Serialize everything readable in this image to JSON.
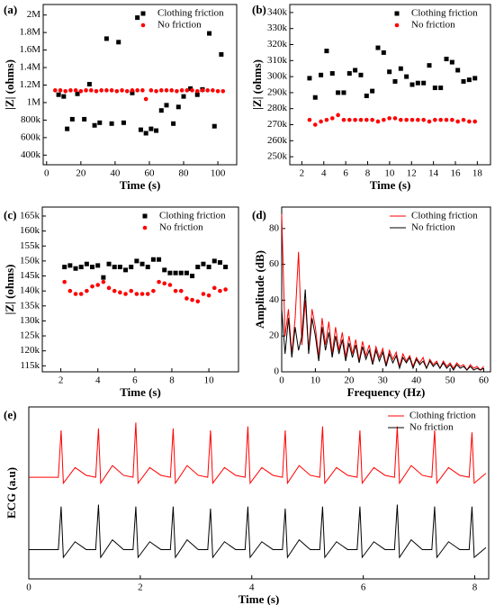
{
  "chart_data": [
    {
      "type": "scatter",
      "panel_label": "(a)",
      "x_label": "Time (s)",
      "y_label": "|Z| (ohms)",
      "legend": "upper right",
      "xlim": [
        -2,
        111
      ],
      "xticks": [
        0,
        20,
        40,
        60,
        80,
        100
      ],
      "ylim": [
        290000,
        2120000
      ],
      "yticks": [
        {
          "value": 400000,
          "label": "400k"
        },
        {
          "value": 600000,
          "label": "600k"
        },
        {
          "value": 800000,
          "label": "800k"
        },
        {
          "value": 1000000,
          "label": "1M"
        },
        {
          "value": 1200000,
          "label": "1.2M"
        },
        {
          "value": 1400000,
          "label": "1.4M"
        },
        {
          "value": 1600000,
          "label": "1.6M"
        },
        {
          "value": 1800000,
          "label": "1.8M"
        },
        {
          "value": 2000000,
          "label": "2M"
        }
      ],
      "series": [
        {
          "name": "Clothing friction",
          "color": "#000000",
          "marker": "square",
          "x": [
            7,
            10,
            12,
            15,
            18,
            22,
            25,
            28,
            31,
            35,
            38,
            42,
            45,
            50,
            53,
            55,
            58,
            61,
            64,
            67,
            70,
            74,
            77,
            80,
            84,
            88,
            91,
            95,
            98,
            102
          ],
          "values": [
            1090000,
            1070000,
            700000,
            810000,
            1100000,
            810000,
            1210000,
            740000,
            770000,
            1730000,
            760000,
            1690000,
            770000,
            1110000,
            1970000,
            690000,
            650000,
            700000,
            680000,
            910000,
            970000,
            760000,
            950000,
            1070000,
            1160000,
            1090000,
            1150000,
            1790000,
            730000,
            1550000
          ]
        },
        {
          "name": "No friction",
          "color": "#ff0000",
          "marker": "circle",
          "x": [
            5,
            8,
            11,
            14,
            17,
            20,
            23,
            26,
            29,
            32,
            35,
            38,
            41,
            44,
            47,
            50,
            53,
            56,
            58,
            61,
            64,
            67,
            70,
            73,
            76,
            79,
            82,
            85,
            88,
            91,
            94,
            97,
            100,
            103
          ],
          "values": [
            1140000,
            1140000,
            1130000,
            1140000,
            1140000,
            1130000,
            1140000,
            1140000,
            1130000,
            1140000,
            1140000,
            1140000,
            1130000,
            1140000,
            1130000,
            1140000,
            1140000,
            1140000,
            1040000,
            1140000,
            1130000,
            1140000,
            1140000,
            1140000,
            1130000,
            1140000,
            1140000,
            1140000,
            1130000,
            1140000,
            1140000,
            1140000,
            1130000,
            1130000
          ]
        }
      ]
    },
    {
      "type": "scatter",
      "panel_label": "(b)",
      "x_label": "Time (s)",
      "y_label": "|Z| (ohms)",
      "legend": "upper right",
      "xlim": [
        0.9,
        19.2
      ],
      "xticks": [
        2,
        4,
        6,
        8,
        10,
        12,
        14,
        16,
        18
      ],
      "ylim": [
        245000,
        345000
      ],
      "yticks": [
        {
          "value": 250000,
          "label": "250k"
        },
        {
          "value": 260000,
          "label": "260k"
        },
        {
          "value": 270000,
          "label": "270k"
        },
        {
          "value": 280000,
          "label": "280k"
        },
        {
          "value": 290000,
          "label": "290k"
        },
        {
          "value": 300000,
          "label": "300k"
        },
        {
          "value": 310000,
          "label": "310k"
        },
        {
          "value": 320000,
          "label": "320k"
        },
        {
          "value": 330000,
          "label": "330k"
        },
        {
          "value": 340000,
          "label": "340k"
        }
      ],
      "series": [
        {
          "name": "Clothing friction",
          "color": "#000000",
          "marker": "square",
          "x": [
            2.7,
            3.22,
            3.74,
            4.26,
            4.78,
            5.3,
            5.82,
            6.34,
            6.86,
            7.38,
            7.9,
            8.42,
            8.94,
            9.46,
            9.98,
            10.5,
            11.02,
            11.54,
            12.06,
            12.58,
            13.1,
            13.62,
            14.14,
            14.66,
            15.18,
            15.7,
            16.22,
            16.74,
            17.26,
            17.78
          ],
          "values": [
            299000,
            287000,
            301000,
            316000,
            302000,
            290000,
            290000,
            302000,
            304000,
            301000,
            288000,
            291000,
            318000,
            315000,
            303000,
            297000,
            305000,
            300000,
            295000,
            296000,
            296000,
            307000,
            293000,
            293000,
            311000,
            309000,
            304000,
            297000,
            298000,
            299000
          ]
        },
        {
          "name": "No friction",
          "color": "#ff0000",
          "marker": "circle",
          "x": [
            2.7,
            3.22,
            3.74,
            4.26,
            4.78,
            5.3,
            5.82,
            6.34,
            6.86,
            7.38,
            7.9,
            8.42,
            8.94,
            9.46,
            9.98,
            10.5,
            11.02,
            11.54,
            12.06,
            12.58,
            13.1,
            13.62,
            14.14,
            14.66,
            15.18,
            15.7,
            16.22,
            16.74,
            17.26,
            17.78
          ],
          "values": [
            273000,
            270000,
            272000,
            273000,
            274000,
            276000,
            273000,
            273000,
            273000,
            273000,
            273000,
            273000,
            272000,
            273000,
            274000,
            274000,
            273000,
            273000,
            273000,
            273000,
            273000,
            272000,
            273000,
            273000,
            273000,
            273000,
            272000,
            273000,
            272000,
            272000
          ]
        }
      ]
    },
    {
      "type": "scatter",
      "panel_label": "(c)",
      "x_label": "Time (s)",
      "y_label": "|Z| (ohms)",
      "legend": "upper right",
      "xlim": [
        1,
        11.6
      ],
      "xticks": [
        2,
        4,
        6,
        8,
        10
      ],
      "ylim": [
        113000,
        168000
      ],
      "yticks": [
        {
          "value": 115000,
          "label": "115k"
        },
        {
          "value": 120000,
          "label": "120k"
        },
        {
          "value": 125000,
          "label": "125k"
        },
        {
          "value": 130000,
          "label": "130k"
        },
        {
          "value": 135000,
          "label": "135k"
        },
        {
          "value": 140000,
          "label": "140k"
        },
        {
          "value": 145000,
          "label": "145k"
        },
        {
          "value": 150000,
          "label": "150k"
        },
        {
          "value": 155000,
          "label": "155k"
        },
        {
          "value": 160000,
          "label": "160k"
        },
        {
          "value": 165000,
          "label": "165k"
        }
      ],
      "series": [
        {
          "name": "Clothing friction",
          "color": "#000000",
          "marker": "square",
          "x": [
            2.2,
            2.5,
            2.8,
            3.1,
            3.4,
            3.7,
            4.0,
            4.3,
            4.6,
            4.9,
            5.2,
            5.5,
            5.8,
            6.1,
            6.4,
            6.7,
            7.0,
            7.3,
            7.6,
            7.9,
            8.2,
            8.5,
            8.8,
            9.1,
            9.4,
            9.7,
            10.0,
            10.3,
            10.6,
            10.9
          ],
          "values": [
            148000,
            148500,
            147500,
            148000,
            149000,
            148000,
            148500,
            144500,
            149000,
            148000,
            148000,
            147000,
            148000,
            150000,
            149000,
            148000,
            150500,
            150500,
            147000,
            146000,
            146000,
            146000,
            146000,
            145000,
            148000,
            149000,
            148000,
            150000,
            149500,
            148000
          ]
        },
        {
          "name": "No friction",
          "color": "#ff0000",
          "marker": "circle",
          "x": [
            2.2,
            2.5,
            2.8,
            3.1,
            3.4,
            3.7,
            4.0,
            4.3,
            4.6,
            4.9,
            5.2,
            5.5,
            5.8,
            6.1,
            6.4,
            6.7,
            7.0,
            7.3,
            7.6,
            7.9,
            8.2,
            8.5,
            8.8,
            9.1,
            9.4,
            9.7,
            10.0,
            10.3,
            10.6,
            10.9
          ],
          "values": [
            143000,
            140000,
            139000,
            139000,
            140000,
            141500,
            142000,
            143000,
            141000,
            140000,
            139500,
            139000,
            140000,
            139000,
            139000,
            139000,
            140000,
            143000,
            142500,
            142000,
            140000,
            140000,
            137500,
            137000,
            136500,
            139000,
            138500,
            141000,
            140000,
            140500
          ]
        }
      ]
    },
    {
      "type": "line",
      "panel_label": "(d)",
      "x_label": "Frequency (Hz)",
      "y_label": "Amplitude (dB)",
      "legend": "upper right",
      "xlim": [
        0,
        62
      ],
      "xticks": [
        0,
        10,
        20,
        30,
        40,
        50,
        60
      ],
      "ylim": [
        0,
        92
      ],
      "yticks": [
        0,
        20,
        40,
        60,
        80
      ],
      "x": [
        0,
        1,
        2,
        3,
        4,
        5,
        6,
        7,
        8,
        9,
        10,
        11,
        12,
        13,
        14,
        15,
        16,
        17,
        18,
        19,
        20,
        21,
        22,
        23,
        24,
        25,
        26,
        27,
        28,
        29,
        30,
        31,
        32,
        33,
        34,
        35,
        36,
        37,
        38,
        39,
        40,
        41,
        42,
        43,
        44,
        45,
        46,
        47,
        48,
        49,
        50,
        51,
        52,
        53,
        54,
        55,
        56,
        57,
        58,
        59,
        60
      ],
      "series": [
        {
          "name": "Clothing friction",
          "color": "#ff0000",
          "values": [
            88,
            20,
            35,
            10,
            30,
            67,
            15,
            40,
            12,
            35,
            25,
            8,
            30,
            15,
            28,
            10,
            25,
            12,
            22,
            8,
            20,
            10,
            18,
            6,
            17,
            9,
            15,
            5,
            14,
            8,
            13,
            4,
            12,
            7,
            11,
            3,
            10,
            6,
            9,
            3,
            8,
            5,
            8,
            2,
            7,
            4,
            6,
            2,
            6,
            3,
            5,
            2,
            5,
            3,
            4,
            1,
            4,
            2,
            3,
            1,
            3
          ]
        },
        {
          "name": "No friction",
          "color": "#000000",
          "values": [
            35,
            10,
            30,
            8,
            25,
            12,
            20,
            46,
            10,
            30,
            20,
            6,
            25,
            12,
            22,
            8,
            20,
            10,
            18,
            6,
            16,
            8,
            15,
            5,
            14,
            7,
            12,
            4,
            12,
            6,
            11,
            3,
            10,
            5,
            9,
            2,
            8,
            5,
            8,
            2,
            7,
            4,
            6,
            2,
            6,
            3,
            5,
            2,
            5,
            2,
            4,
            1,
            4,
            2,
            3,
            1,
            3,
            1,
            2,
            1,
            2
          ]
        }
      ]
    },
    {
      "type": "line",
      "panel_label": "(e)",
      "x_label": "Time (s)",
      "y_label": "ECG (a.u)",
      "legend": "upper right",
      "xlim": [
        0,
        8.25
      ],
      "xticks": [
        0,
        2,
        4,
        6,
        8
      ],
      "ylim": [
        -0.6,
        3.8
      ],
      "x": [
        0,
        0.53,
        0.58,
        0.62,
        0.83,
        1.03,
        1.2,
        1.25,
        1.29,
        1.5,
        1.7,
        1.87,
        1.92,
        1.96,
        2.17,
        2.37,
        2.54,
        2.59,
        2.63,
        2.84,
        3.04,
        3.21,
        3.26,
        3.3,
        3.51,
        3.71,
        3.88,
        3.93,
        3.97,
        4.18,
        4.38,
        4.55,
        4.6,
        4.64,
        4.85,
        5.05,
        5.22,
        5.27,
        5.31,
        5.52,
        5.72,
        5.89,
        5.94,
        5.98,
        6.19,
        6.39,
        6.56,
        6.61,
        6.65,
        6.86,
        7.06,
        7.23,
        7.28,
        7.32,
        7.53,
        7.73,
        7.9,
        7.95,
        7.99,
        8.2
      ],
      "series": [
        {
          "name": "Clothing friction",
          "color": "#ff0000",
          "values": [
            2.0,
            2.0,
            3.2,
            1.85,
            2.25,
            2.05,
            2.0,
            3.25,
            1.85,
            2.3,
            2.05,
            2.0,
            3.4,
            1.85,
            2.25,
            2.05,
            2.0,
            3.25,
            1.85,
            2.3,
            2.05,
            2.0,
            3.2,
            1.85,
            2.25,
            2.05,
            2.0,
            3.3,
            1.85,
            2.25,
            2.05,
            2.0,
            3.2,
            1.85,
            2.3,
            2.05,
            2.0,
            3.3,
            1.85,
            2.25,
            2.05,
            2.0,
            3.2,
            1.85,
            2.25,
            2.05,
            2.0,
            3.3,
            1.85,
            2.3,
            2.05,
            2.0,
            3.2,
            1.85,
            2.25,
            2.05,
            2.0,
            3.15,
            1.85,
            2.1
          ]
        },
        {
          "name": "No friction",
          "color": "#000000",
          "values": [
            0.15,
            0.15,
            1.25,
            -0.05,
            0.35,
            0.15,
            0.15,
            1.3,
            -0.05,
            0.4,
            0.15,
            0.15,
            1.25,
            -0.05,
            0.35,
            0.15,
            0.15,
            1.25,
            -0.05,
            0.4,
            0.15,
            0.15,
            1.2,
            -0.05,
            0.35,
            0.15,
            0.15,
            1.25,
            -0.05,
            0.35,
            0.15,
            0.15,
            1.2,
            -0.05,
            0.4,
            0.15,
            0.15,
            1.25,
            -0.05,
            0.35,
            0.15,
            0.15,
            1.25,
            -0.05,
            0.35,
            0.15,
            0.15,
            1.3,
            -0.05,
            0.4,
            0.15,
            0.15,
            1.25,
            -0.05,
            0.35,
            0.15,
            0.15,
            1.25,
            -0.05,
            0.2
          ]
        }
      ]
    }
  ]
}
